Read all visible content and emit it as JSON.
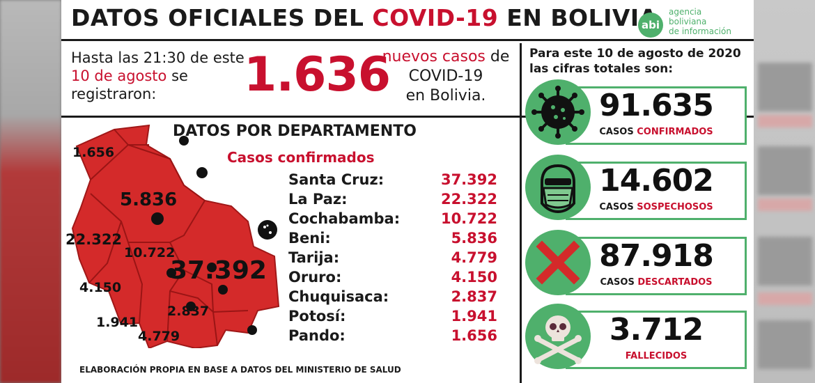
{
  "header": {
    "title_part1": "DATOS OFICIALES DEL ",
    "title_part2": "COVID-19",
    "title_part3": " EN BOLIVIA",
    "logo_abbr": "abi",
    "logo_line1": "agencia",
    "logo_line2": "boliviana",
    "logo_line3": "de información"
  },
  "intro": {
    "text_part1": "Hasta las 21:30 de este ",
    "date": "10 de agosto",
    "text_part2": " se registraron:",
    "new_cases": "1.636",
    "new_text_red": "nuevos casos",
    "new_text_rest1": " de COVID-19",
    "new_text_rest2": "en Bolivia."
  },
  "department": {
    "title": "DATOS POR DEPARTAMENTO",
    "subtitle": "Casos confirmados",
    "rows": [
      {
        "name": "Santa Cruz:",
        "value": "37.392"
      },
      {
        "name": "La Paz:",
        "value": "22.322"
      },
      {
        "name": "Cochabamba:",
        "value": "10.722"
      },
      {
        "name": "Beni:",
        "value": "5.836"
      },
      {
        "name": "Tarija:",
        "value": "4.779"
      },
      {
        "name": "Oruro:",
        "value": "4.150"
      },
      {
        "name": "Chuquisaca:",
        "value": "2.837"
      },
      {
        "name": "Potosí:",
        "value": "1.941"
      },
      {
        "name": "Pando:",
        "value": "1.656"
      }
    ],
    "map_labels": {
      "pando": "1.656",
      "beni": "5.836",
      "lapaz": "22.322",
      "cochabamba": "10.722",
      "santacruz": "37.392",
      "oruro": "4.150",
      "chuquisaca": "2.837",
      "potosi": "1.941",
      "tarija": "4.779"
    }
  },
  "totals": {
    "heading": "Para este 10 de agosto de 2020 las cifras totales son:",
    "stats": [
      {
        "number": "91.635",
        "label_black": "CASOS ",
        "label_red": "CONFIRMADOS",
        "icon": "virus-icon"
      },
      {
        "number": "14.602",
        "label_black": "CASOS ",
        "label_red": "SOSPECHOSOS",
        "icon": "mask-icon"
      },
      {
        "number": "87.918",
        "label_black": "CASOS ",
        "label_red": "DESCARTADOS",
        "icon": "cross-icon"
      },
      {
        "number": "3.712",
        "label_black": "",
        "label_red": "FALLECIDOS",
        "icon": "skull-icon"
      }
    ]
  },
  "footer": {
    "text": "ELABORACIÓN PROPIA EN BASE A DATOS DEL MINISTERIO DE SALUD"
  },
  "colors": {
    "accent_red": "#c8102e",
    "accent_green": "#4fb06c",
    "map_red": "#d42a2a"
  }
}
